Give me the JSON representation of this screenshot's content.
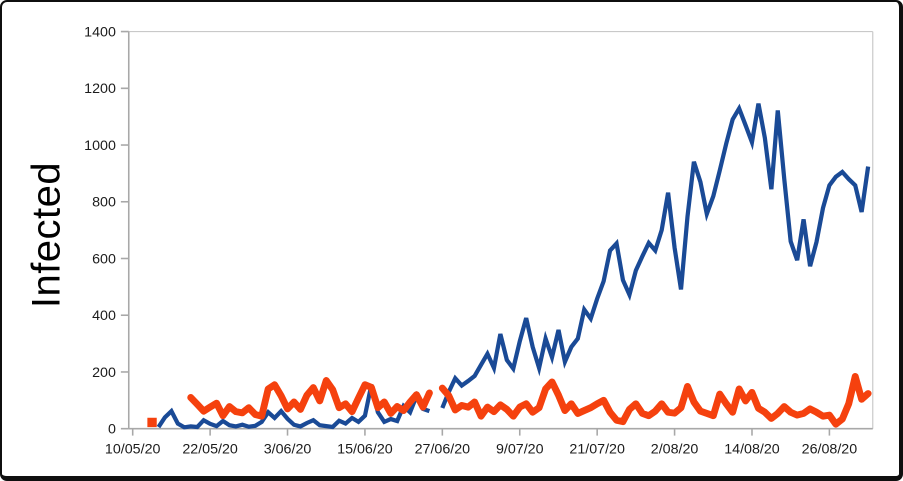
{
  "chart_data": {
    "type": "line",
    "title": "",
    "xlabel": "",
    "ylabel": "Infected",
    "ylim": [
      0,
      1400
    ],
    "y_ticks": [
      0,
      200,
      400,
      600,
      800,
      1000,
      1200,
      1400
    ],
    "x_tick_labels": [
      "10/05/20",
      "22/05/20",
      "3/06/20",
      "15/06/20",
      "27/06/20",
      "9/07/20",
      "21/07/20",
      "2/08/20",
      "14/08/20",
      "26/08/20"
    ],
    "x_tick_days": [
      0,
      12,
      24,
      36,
      48,
      60,
      72,
      84,
      96,
      108
    ],
    "x_day_range": [
      0,
      114
    ],
    "grid": "top border and right border only, no interior gridlines",
    "legend": "none",
    "axis_color": "#a8a8a8",
    "border_color": "#c9c9c9",
    "series": [
      {
        "name": "blue-series",
        "color": "#1a4a96",
        "values": [
          null,
          null,
          null,
          null,
          6,
          40,
          62,
          18,
          5,
          8,
          6,
          30,
          17,
          9,
          27,
          12,
          8,
          14,
          7,
          10,
          24,
          58,
          38,
          62,
          35,
          14,
          8,
          20,
          30,
          12,
          9,
          6,
          28,
          18,
          38,
          24,
          46,
          155,
          58,
          24,
          34,
          27,
          80,
          58,
          115,
          70,
          62,
          null,
          73,
          130,
          178,
          152,
          168,
          186,
          225,
          264,
          214,
          334,
          242,
          212,
          308,
          390,
          288,
          214,
          318,
          252,
          348,
          236,
          288,
          318,
          420,
          388,
          458,
          520,
          628,
          653,
          524,
          472,
          558,
          608,
          655,
          628,
          700,
          832,
          638,
          491,
          748,
          941,
          870,
          757,
          820,
          910,
          1005,
          1090,
          1129,
          1070,
          1010,
          1146,
          1025,
          844,
          1122,
          880,
          660,
          594,
          738,
          573,
          658,
          778,
          858,
          888,
          905,
          880,
          858,
          764,
          924
        ]
      },
      {
        "name": "orange-series",
        "color": "#f5410e",
        "values": [
          null,
          null,
          null,
          22,
          null,
          null,
          null,
          null,
          null,
          110,
          86,
          62,
          76,
          90,
          46,
          78,
          60,
          56,
          74,
          50,
          44,
          140,
          155,
          116,
          70,
          94,
          68,
          118,
          145,
          98,
          170,
          138,
          74,
          88,
          60,
          108,
          155,
          146,
          74,
          94,
          54,
          78,
          64,
          94,
          120,
          76,
          126,
          null,
          143,
          116,
          66,
          82,
          76,
          94,
          44,
          76,
          60,
          84,
          68,
          44,
          76,
          88,
          58,
          74,
          140,
          165,
          118,
          64,
          88,
          54,
          64,
          74,
          88,
          100,
          58,
          30,
          25,
          68,
          88,
          54,
          46,
          62,
          88,
          58,
          55,
          74,
          149,
          94,
          62,
          54,
          46,
          122,
          88,
          58,
          140,
          98,
          128,
          72,
          58,
          36,
          54,
          78,
          58,
          48,
          54,
          70,
          58,
          44,
          48,
          16,
          34,
          88,
          184,
          104,
          124
        ]
      }
    ]
  }
}
